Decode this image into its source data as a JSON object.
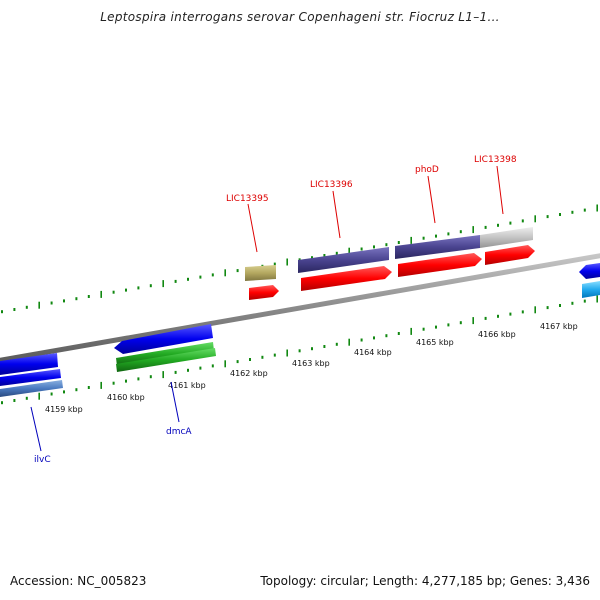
{
  "title": "Leptospira interrogans serovar Copenhageni str. Fiocruz L1–1...",
  "footer": {
    "accession": "Accession: NC_005823",
    "summary": "Topology: circular; Length: 4,277,185 bp; Genes: 3,436"
  },
  "colors": {
    "label_red": "#dd0000",
    "label_blue": "#0000bb",
    "backbone": "#7a7a7a",
    "tick": "#118811",
    "cds_red": "#ff0000",
    "gene_blue": "#0000ee",
    "gene_purple": "#4a4490",
    "gene_khaki": "#b4a860",
    "gene_gray": "#c4c4c4",
    "gene_green": "#22aa22",
    "gene_skyblue": "#22aaee"
  },
  "scale_labels": [
    "4159 kbp",
    "4160 kbp",
    "4161 kbp",
    "4162 kbp",
    "4163 kbp",
    "4164 kbp",
    "4165 kbp",
    "4166 kbp",
    "4167 kbp"
  ],
  "upper_features": [
    {
      "name": "LIC13395",
      "color": "#dd0000"
    },
    {
      "name": "LIC13396",
      "color": "#dd0000"
    },
    {
      "name": "phoD",
      "color": "#dd0000"
    },
    {
      "name": "LIC13398",
      "color": "#dd0000"
    }
  ],
  "lower_features": [
    {
      "name": "ilvC",
      "color": "#0000bb"
    },
    {
      "name": "dmcA",
      "color": "#0000bb"
    }
  ]
}
